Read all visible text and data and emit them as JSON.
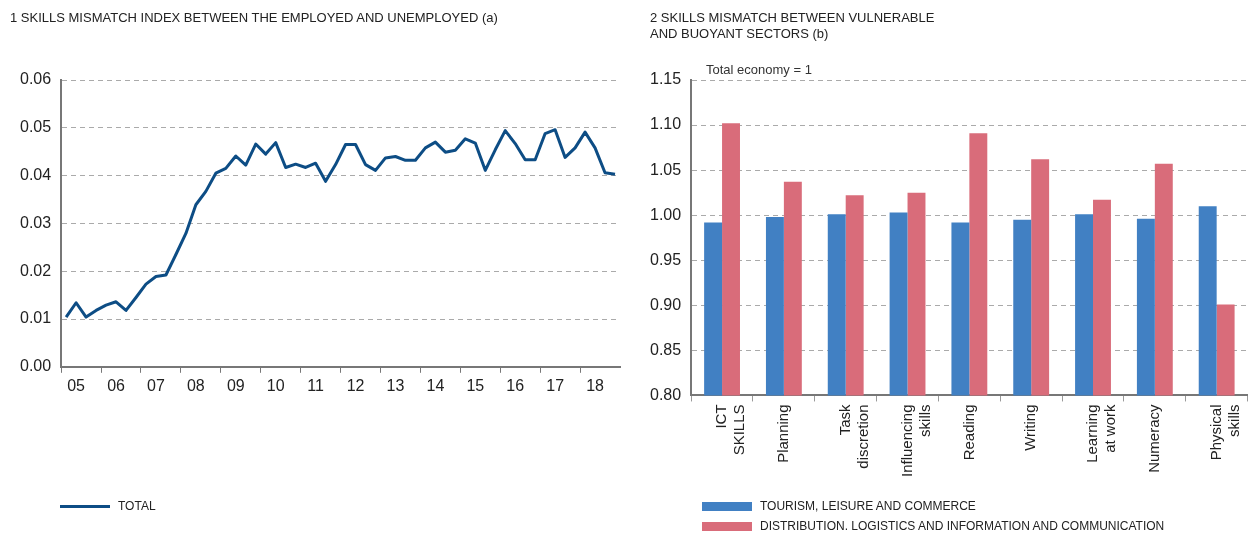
{
  "chart_data": [
    {
      "type": "line",
      "title": "1  SKILLS MISMATCH INDEX BETWEEN THE EMPLOYED AND UNEMPLOYED (a)",
      "categories": [
        null,
        "05",
        null,
        null,
        null,
        "06",
        null,
        null,
        null,
        "07",
        null,
        null,
        null,
        "08",
        null,
        null,
        null,
        "09",
        null,
        null,
        null,
        "10",
        null,
        null,
        null,
        "11",
        null,
        null,
        null,
        "12",
        null,
        null,
        null,
        "13",
        null,
        null,
        null,
        "14",
        null,
        null,
        null,
        "15",
        null,
        null,
        null,
        "16",
        null,
        null,
        null,
        "17",
        null,
        null,
        null,
        "18",
        null,
        null
      ],
      "series": [
        {
          "name": "TOTAL",
          "color": "#0d4d85",
          "values": [
            0.0104,
            0.0134,
            0.0104,
            0.0118,
            0.0129,
            0.0136,
            0.0118,
            0.0145,
            0.0173,
            0.0189,
            0.0192,
            0.0235,
            0.0279,
            0.0339,
            0.0367,
            0.0405,
            0.0415,
            0.0441,
            0.0422,
            0.0466,
            0.0445,
            0.0469,
            0.0417,
            0.0424,
            0.0417,
            0.0426,
            0.0388,
            0.0423,
            0.0465,
            0.0465,
            0.0423,
            0.0411,
            0.0437,
            0.044,
            0.0432,
            0.0432,
            0.0458,
            0.047,
            0.0449,
            0.0453,
            0.0477,
            0.0468,
            0.0411,
            0.0454,
            0.0494,
            0.0467,
            0.0433,
            0.0433,
            0.0488,
            0.0496,
            0.0438,
            0.0458,
            0.0491,
            0.0458,
            0.0406,
            0.0403
          ]
        }
      ],
      "ylim": [
        0,
        0.06
      ],
      "yticks": [
        {
          "value": 0,
          "label": "0.00"
        },
        {
          "value": 0.01,
          "label": "0.01"
        },
        {
          "value": 0.02,
          "label": "0.02"
        },
        {
          "value": 0.03,
          "label": "0.03"
        },
        {
          "value": 0.04,
          "label": "0.04"
        },
        {
          "value": 0.05,
          "label": "0.05"
        },
        {
          "value": 0.06,
          "label": "0.06"
        }
      ],
      "grid": "y",
      "legend": "bottom",
      "marker": "none",
      "line_style": "solid"
    },
    {
      "type": "bar",
      "title": "2  SKILLS MISMATCH BETWEEN VULNERABLE\nAND BUOYANT SECTORS (b)",
      "subtitle": "Total economy = 1",
      "categories": [
        "ICT\nSKILLS",
        "Planning",
        "Task\ndiscretion",
        "Influencing\nskills",
        "Reading",
        "Writing",
        "Learning\nat work",
        "Numeracy",
        "Physical\nskills"
      ],
      "series": [
        {
          "name": "TOURISM, LEISURE AND COMMERCE",
          "color": "#4180c3",
          "values": [
            0.992,
            0.998,
            1.001,
            1.003,
            0.992,
            0.995,
            1.001,
            0.996,
            1.01
          ]
        },
        {
          "name": "DISTRIBUTION. LOGISTICS AND INFORMATION AND COMMUNICATION",
          "color": "#d96c7a",
          "values": [
            1.102,
            1.037,
            1.022,
            1.025,
            1.091,
            1.062,
            1.017,
            1.057,
            0.901
          ]
        }
      ],
      "ylim": [
        0.8,
        1.15
      ],
      "yticks": [
        {
          "value": 0.8,
          "label": "0.80"
        },
        {
          "value": 0.85,
          "label": "0.85"
        },
        {
          "value": 0.9,
          "label": "0.90"
        },
        {
          "value": 0.95,
          "label": "0.95"
        },
        {
          "value": 1,
          "label": "1.00"
        },
        {
          "value": 1.05,
          "label": "1.05"
        },
        {
          "value": 1.1,
          "label": "1.10"
        },
        {
          "value": 1.15,
          "label": "1.15"
        }
      ],
      "grid": "y",
      "legend": "bottom"
    }
  ]
}
